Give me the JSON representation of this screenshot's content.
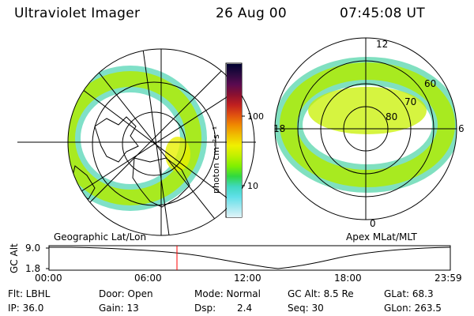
{
  "header": {
    "instrument": "Ultraviolet Imager",
    "date": "26 Aug 00",
    "time": "07:45:08 UT"
  },
  "left_panel": {
    "caption": "Geographic Lat/Lon"
  },
  "right_panel": {
    "caption": "Apex MLat/MLT",
    "mlt_labels": [
      "12",
      "18",
      "6",
      "0"
    ],
    "lat_labels": [
      "60",
      "70",
      "80"
    ]
  },
  "colorbar": {
    "unit_label": "photon cm⁻²s⁻¹",
    "ticks": [
      "100",
      "10"
    ],
    "colors": [
      "#000030",
      "#2a0a40",
      "#5a0a50",
      "#8a1030",
      "#c02020",
      "#e05010",
      "#f08a00",
      "#f0c000",
      "#f0f000",
      "#c0f000",
      "#80f000",
      "#30d840",
      "#40d8c0",
      "#60e0e8",
      "#a0e8f0",
      "#e0f4f8"
    ]
  },
  "altitude_plot": {
    "ylabel": "GC Alt",
    "yticks": [
      "9.0",
      "1.8"
    ],
    "xticks": [
      "00:00",
      "06:00",
      "12:00",
      "18:00",
      "23:59"
    ],
    "cursor_time": "07:45",
    "cursor_color": "#ff0000"
  },
  "status": {
    "flt": "Flt: LBHL",
    "door": "Door: Open",
    "mode": "Mode: Normal",
    "gc_alt": "GC Alt: 8.5 Re",
    "glat": "GLat: 68.3",
    "ip": "IP: 36.0",
    "gain": "Gain: 13",
    "dsp_label": "Dsp:",
    "dsp_value": "2.4",
    "seq": "Seq: 30",
    "glon": "GLon: 263.5"
  }
}
